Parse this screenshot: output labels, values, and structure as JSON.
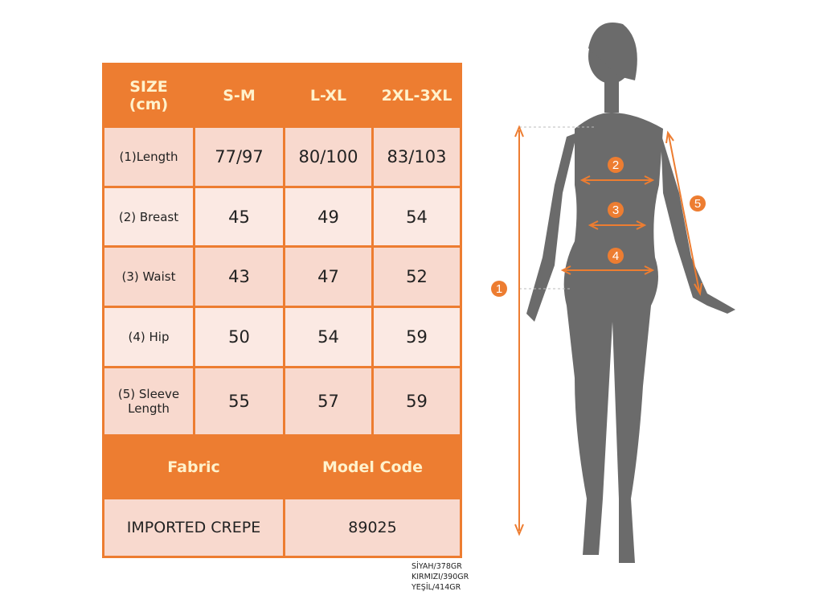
{
  "table": {
    "header": [
      "SIZE\n(cm)",
      "S-M",
      "L-XL",
      "2XL-3XL"
    ],
    "header_size_line1": "SIZE",
    "header_size_line2": "(cm)",
    "rows": [
      {
        "label": "(1)Length",
        "values": [
          "77/97",
          "80/100",
          "83/103"
        ]
      },
      {
        "label": "(2) Breast",
        "values": [
          "45",
          "49",
          "54"
        ]
      },
      {
        "label": "(3) Waist",
        "values": [
          "43",
          "47",
          "52"
        ]
      },
      {
        "label": "(4) Hip",
        "values": [
          "50",
          "54",
          "59"
        ]
      },
      {
        "label_line1": "(5) Sleeve",
        "label_line2": "Length",
        "values": [
          "55",
          "57",
          "59"
        ]
      }
    ],
    "footer_headers": [
      "Fabric",
      "Model Code"
    ],
    "footer_values": [
      "IMPORTED CREPE",
      "89025"
    ]
  },
  "weights": [
    "SİYAH/378GR",
    "KIRMIZI/390GR",
    "YEŞİL/414GR"
  ],
  "figure": {
    "markers": [
      "1",
      "2",
      "3",
      "4",
      "5"
    ]
  },
  "colors": {
    "accent": "#ED7D31",
    "cell_dark": "#F8D9CE",
    "cell_light": "#FBE9E3",
    "header_text": "#FFF2CC",
    "silhouette": "#6b6b6b"
  }
}
